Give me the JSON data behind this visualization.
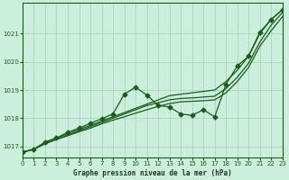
{
  "title": "Graphe pression niveau de la mer (hPa)",
  "bg_color": "#cceedd",
  "grid_color": "#aaccbb",
  "line_color": "#1a5c1a",
  "x_min": 0,
  "x_max": 23,
  "y_min": 1016.6,
  "y_max": 1022.1,
  "yticks": [
    1017,
    1018,
    1019,
    1020,
    1021
  ],
  "xticks": [
    0,
    1,
    2,
    3,
    4,
    5,
    6,
    7,
    8,
    9,
    10,
    11,
    12,
    13,
    14,
    15,
    16,
    17,
    18,
    19,
    20,
    21,
    22,
    23
  ],
  "smooth_line": [
    1016.8,
    1016.9,
    1017.15,
    1017.3,
    1017.45,
    1017.6,
    1017.75,
    1017.9,
    1018.05,
    1018.2,
    1018.35,
    1018.5,
    1018.65,
    1018.8,
    1018.85,
    1018.9,
    1018.95,
    1019.0,
    1019.3,
    1019.7,
    1020.2,
    1021.0,
    1021.5,
    1021.85
  ],
  "smooth_line2": [
    1016.8,
    1016.9,
    1017.1,
    1017.25,
    1017.4,
    1017.55,
    1017.7,
    1017.85,
    1018.0,
    1018.15,
    1018.3,
    1018.45,
    1018.55,
    1018.65,
    1018.7,
    1018.72,
    1018.75,
    1018.78,
    1019.05,
    1019.45,
    1019.95,
    1020.7,
    1021.3,
    1021.75
  ],
  "smooth_line3": [
    1016.8,
    1016.9,
    1017.1,
    1017.25,
    1017.38,
    1017.52,
    1017.65,
    1017.8,
    1017.93,
    1018.05,
    1018.18,
    1018.3,
    1018.42,
    1018.52,
    1018.58,
    1018.6,
    1018.62,
    1018.65,
    1018.9,
    1019.3,
    1019.8,
    1020.55,
    1021.1,
    1021.6
  ],
  "marker_line": [
    1016.8,
    1016.9,
    1017.15,
    1017.3,
    1017.5,
    1017.65,
    1017.82,
    1017.98,
    1018.15,
    1018.85,
    1019.1,
    1018.82,
    1018.45,
    1018.4,
    1018.15,
    1018.1,
    1018.3,
    1018.05,
    1019.2,
    1019.85,
    1020.2,
    1021.05,
    1021.5,
    1021.85
  ],
  "marker": "D",
  "marker_size": 2.5
}
